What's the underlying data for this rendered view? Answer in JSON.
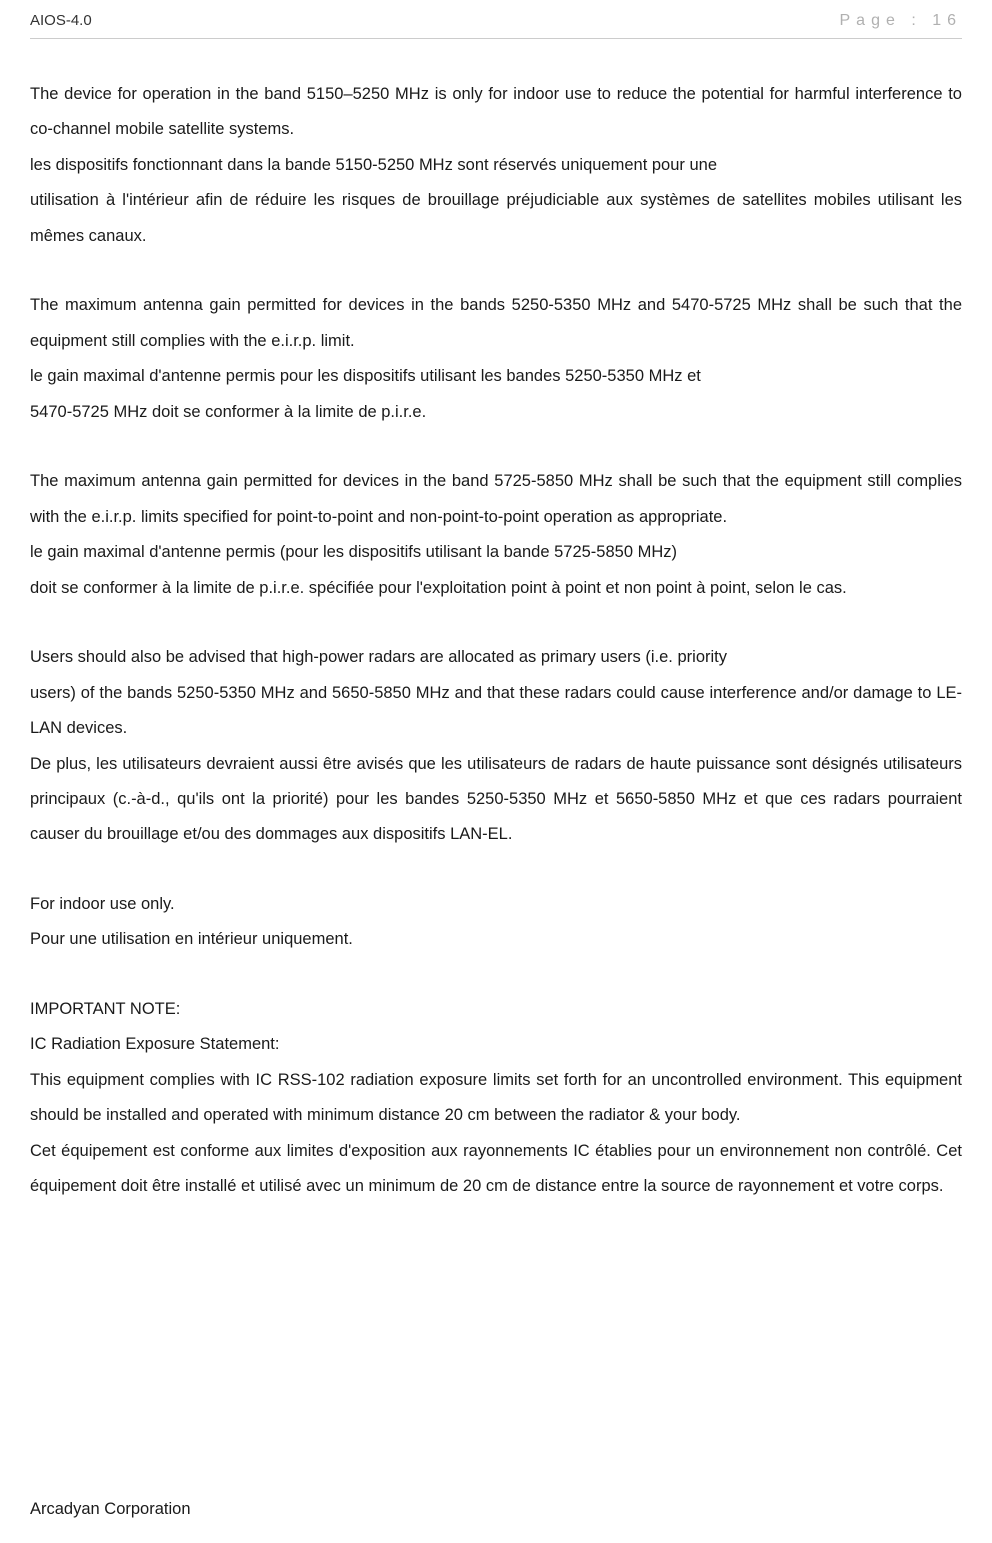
{
  "document": {
    "header_left": "AIOS-4.0",
    "header_right": "Page : 16",
    "footer": "Arcadyan Corporation",
    "font_family": "Arial",
    "body_fontsize_pt": 12,
    "line_height": 2.15,
    "text_color": "#1a1a1a",
    "header_right_color": "#b0b0b0",
    "border_color": "#cccccc",
    "background_color": "#ffffff",
    "paragraphs": [
      "The device for operation in the band 5150–5250 MHz is only for indoor use to reduce the potential for harmful interference to co-channel mobile satellite systems.",
      "les dispositifs fonctionnant dans la bande 5150-5250 MHz sont réservés uniquement pour une",
      "utilisation à l'intérieur afin de réduire les risques de brouillage préjudiciable aux systèmes de satellites mobiles utilisant les mêmes canaux.",
      "",
      "The maximum antenna gain permitted for devices in the bands 5250-5350 MHz and 5470-5725 MHz shall be such that the equipment still complies with the e.i.r.p. limit.",
      "le gain maximal d'antenne permis pour les dispositifs utilisant les bandes 5250-5350 MHz et",
      "5470-5725 MHz doit se conformer à la limite de p.i.r.e.",
      "",
      "The maximum antenna gain permitted for devices in the band 5725-5850 MHz shall be such that the equipment still complies with the e.i.r.p. limits specified for point-to-point and non-point-to-point operation as appropriate.",
      "le gain maximal d'antenne permis (pour les dispositifs utilisant la bande 5725-5850 MHz)",
      "doit se conformer à la limite de p.i.r.e. spécifiée pour l'exploitation point à point et non point à point, selon le cas.",
      "",
      "Users should also be advised that high-power radars are allocated as primary users (i.e. priority",
      "users) of the bands 5250-5350 MHz and 5650-5850 MHz and that these radars could cause interference and/or damage to LE-LAN devices.",
      "De plus, les utilisateurs devraient aussi être avisés que les utilisateurs de radars de haute puissance sont désignés utilisateurs principaux (c.-à-d., qu'ils ont la priorité) pour les bandes 5250-5350 MHz et 5650-5850 MHz et que ces radars pourraient causer du brouillage et/ou des dommages aux dispositifs LAN-EL.",
      "",
      "For indoor use only.",
      "Pour une utilisation en intérieur uniquement.",
      "",
      "IMPORTANT NOTE:",
      "IC Radiation Exposure Statement:",
      "This equipment complies with IC RSS-102 radiation exposure limits set forth for an uncontrolled environment. This equipment should be installed and operated with minimum distance 20 cm between the radiator & your body.",
      "Cet équipement est conforme aux limites d'exposition aux rayonnements IC établies pour un environnement non contrôlé. Cet équipement doit être installé et utilisé avec un minimum de 20 cm de distance entre la source de rayonnement et votre corps."
    ]
  }
}
